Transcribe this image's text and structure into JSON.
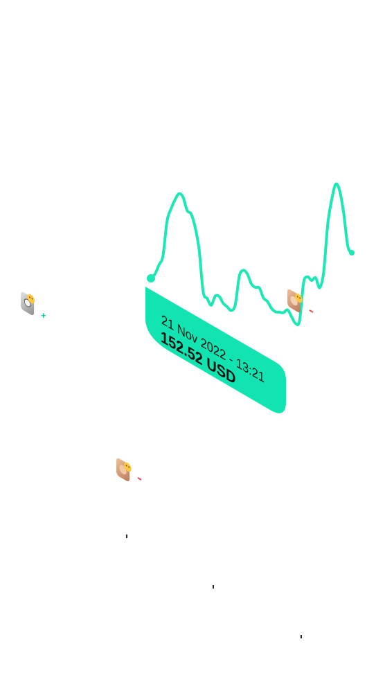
{
  "chart_data": {
    "type": "line",
    "x": [
      0,
      1,
      2,
      3,
      4,
      5,
      6,
      7,
      8,
      9,
      10,
      11,
      12,
      13,
      14,
      15,
      16,
      17,
      18,
      19,
      20,
      21,
      22,
      23,
      24,
      25,
      26,
      27,
      28,
      29,
      30,
      31,
      32,
      33,
      34,
      35,
      36,
      37,
      38,
      39,
      40,
      41,
      42,
      43,
      44,
      45,
      46,
      47,
      48,
      49,
      50
    ],
    "series": [
      {
        "values": [
          152.52,
          154,
          157,
          160,
          171,
          175,
          178,
          180,
          179,
          175,
          174,
          170,
          163,
          150,
          148,
          146,
          149,
          149,
          147,
          146,
          145,
          147,
          156,
          158,
          157,
          154,
          153,
          153,
          150,
          149,
          147,
          146,
          146,
          146,
          147,
          145,
          143,
          144,
          156,
          158,
          157,
          158,
          155,
          160,
          175,
          183,
          188,
          186,
          179,
          169,
          167
        ]
      }
    ],
    "tooltip": {
      "date": "21 Nov 2022 - 13:21",
      "value": "152.52 USD"
    },
    "colors": {
      "line": "#1be8b4",
      "tooltip_bg": "#11e4b0",
      "positive_marker": "#11c9a0",
      "negative_marker": "#f0465a"
    },
    "avatars": [
      {
        "name": "avatar-group-left",
        "change": "+"
      },
      {
        "name": "avatar-group-chart",
        "change": "-"
      },
      {
        "name": "avatar-group-lower",
        "change": "-"
      }
    ],
    "grid": false,
    "legend": "none"
  }
}
